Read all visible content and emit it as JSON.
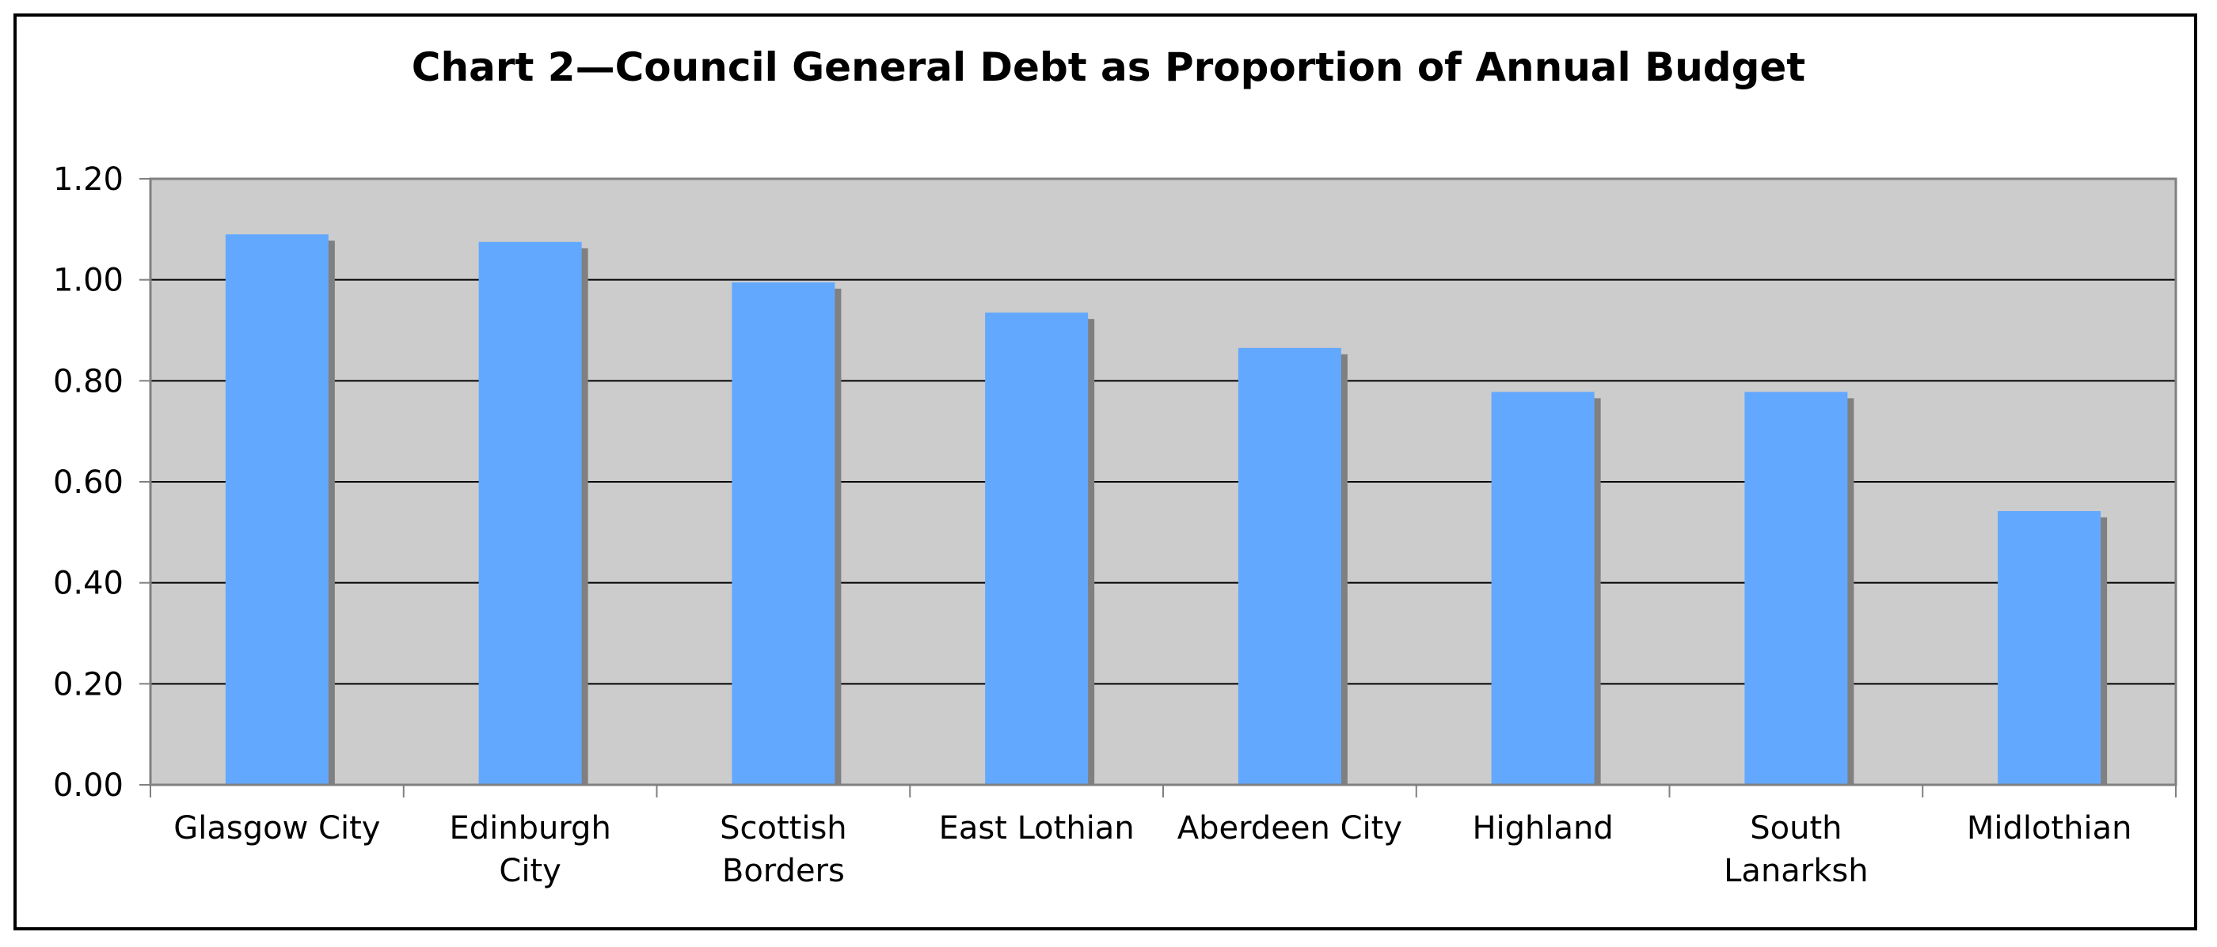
{
  "chart_data": {
    "type": "bar",
    "title": "Chart 2—Council General Debt as Proportion of Annual Budget",
    "xlabel": "",
    "ylabel": "",
    "categories": [
      [
        "Glasgow City"
      ],
      [
        "Edinburgh",
        "City"
      ],
      [
        "Scottish",
        "Borders"
      ],
      [
        "East Lothian"
      ],
      [
        "Aberdeen City"
      ],
      [
        "Highland"
      ],
      [
        "South",
        "Lanarksh"
      ],
      [
        "Midlothian"
      ]
    ],
    "values": [
      1.09,
      1.075,
      0.995,
      0.935,
      0.865,
      0.778,
      0.778,
      0.542
    ],
    "ylim": [
      0,
      1.2
    ],
    "yticks": [
      "0.00",
      "0.20",
      "0.40",
      "0.60",
      "0.80",
      "1.00",
      "1.20"
    ],
    "grid": true,
    "legend": "none",
    "colors": {
      "bar": "#62A8FF",
      "bar_shadow": "#808080",
      "plot_background": "#CCCCCC",
      "gridline": "#000000",
      "axis": "#808080"
    }
  }
}
